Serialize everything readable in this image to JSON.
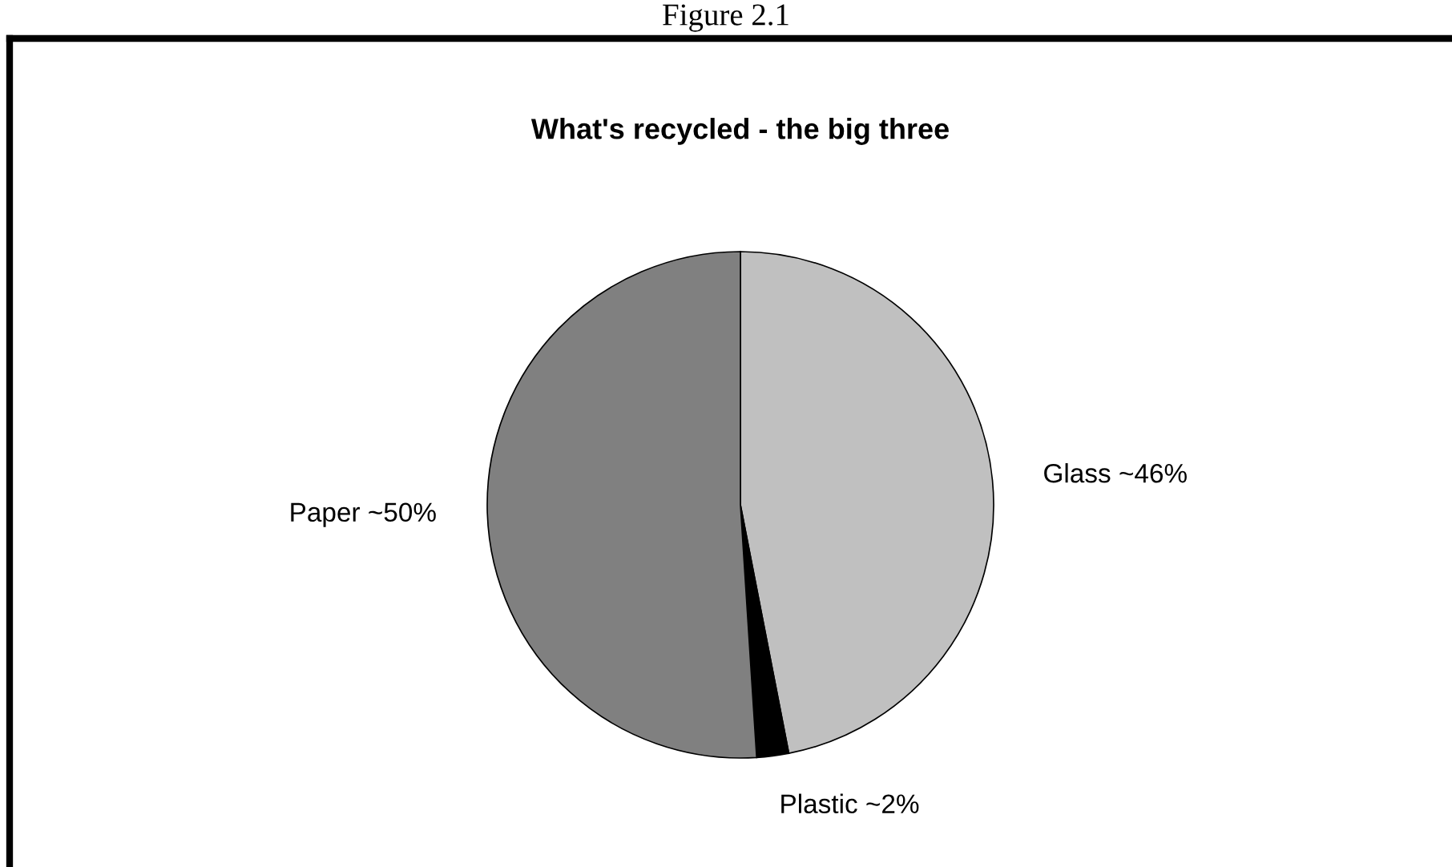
{
  "chart_data": {
    "type": "pie",
    "title": "What's recycled - the big three",
    "annotations": [
      "Figure 2.1"
    ],
    "categories": [
      "Glass",
      "Plastic",
      "Paper"
    ],
    "values": [
      46,
      2,
      50
    ],
    "value_labels": [
      "~46%",
      "~2%",
      "~50%"
    ],
    "colors": [
      "#c0c0c0",
      "#000000",
      "#808080"
    ],
    "legend": false
  }
}
